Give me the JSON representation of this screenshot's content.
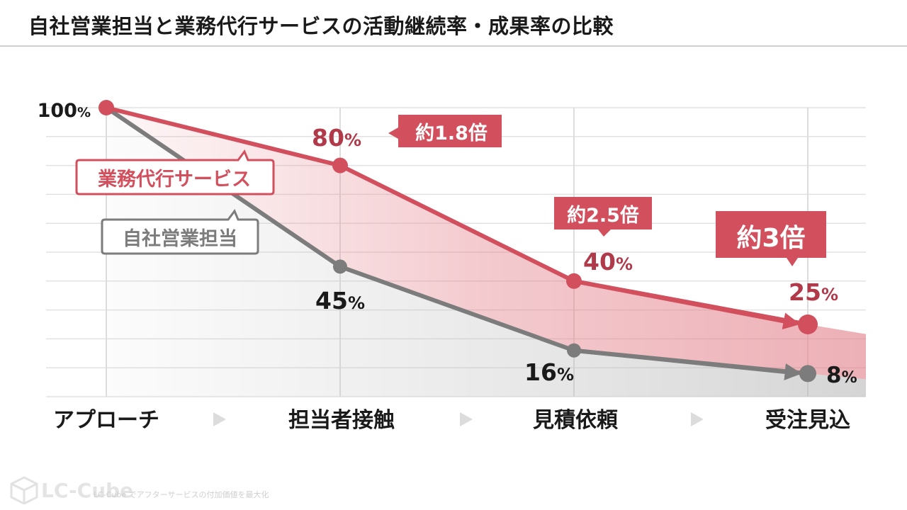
{
  "title": "自社営業担当と業務代行サービスの活動継続率・成果率の比較",
  "chart_data": {
    "type": "line",
    "categories": [
      "アプローチ",
      "担当者接触",
      "見積依頼",
      "受注見込"
    ],
    "ylim": [
      0,
      100
    ],
    "grid": true,
    "series": [
      {
        "name": "業務代行サービス",
        "color": "#d2505e",
        "values": [
          100,
          80,
          40,
          25
        ],
        "value_labels": [
          "",
          "80%",
          "40%",
          "25%"
        ]
      },
      {
        "name": "自社営業担当",
        "color": "#7c7c7c",
        "values": [
          100,
          45,
          16,
          8
        ],
        "value_labels": [
          "100%",
          "45%",
          "16%",
          "8%"
        ]
      }
    ],
    "annotations": [
      "約1.8倍",
      "約2.5倍",
      "約3倍"
    ]
  },
  "footer": {
    "brand": "LC-Cube",
    "tagline": "LC-Cube でアフターサービスの付加価値を最大化"
  }
}
